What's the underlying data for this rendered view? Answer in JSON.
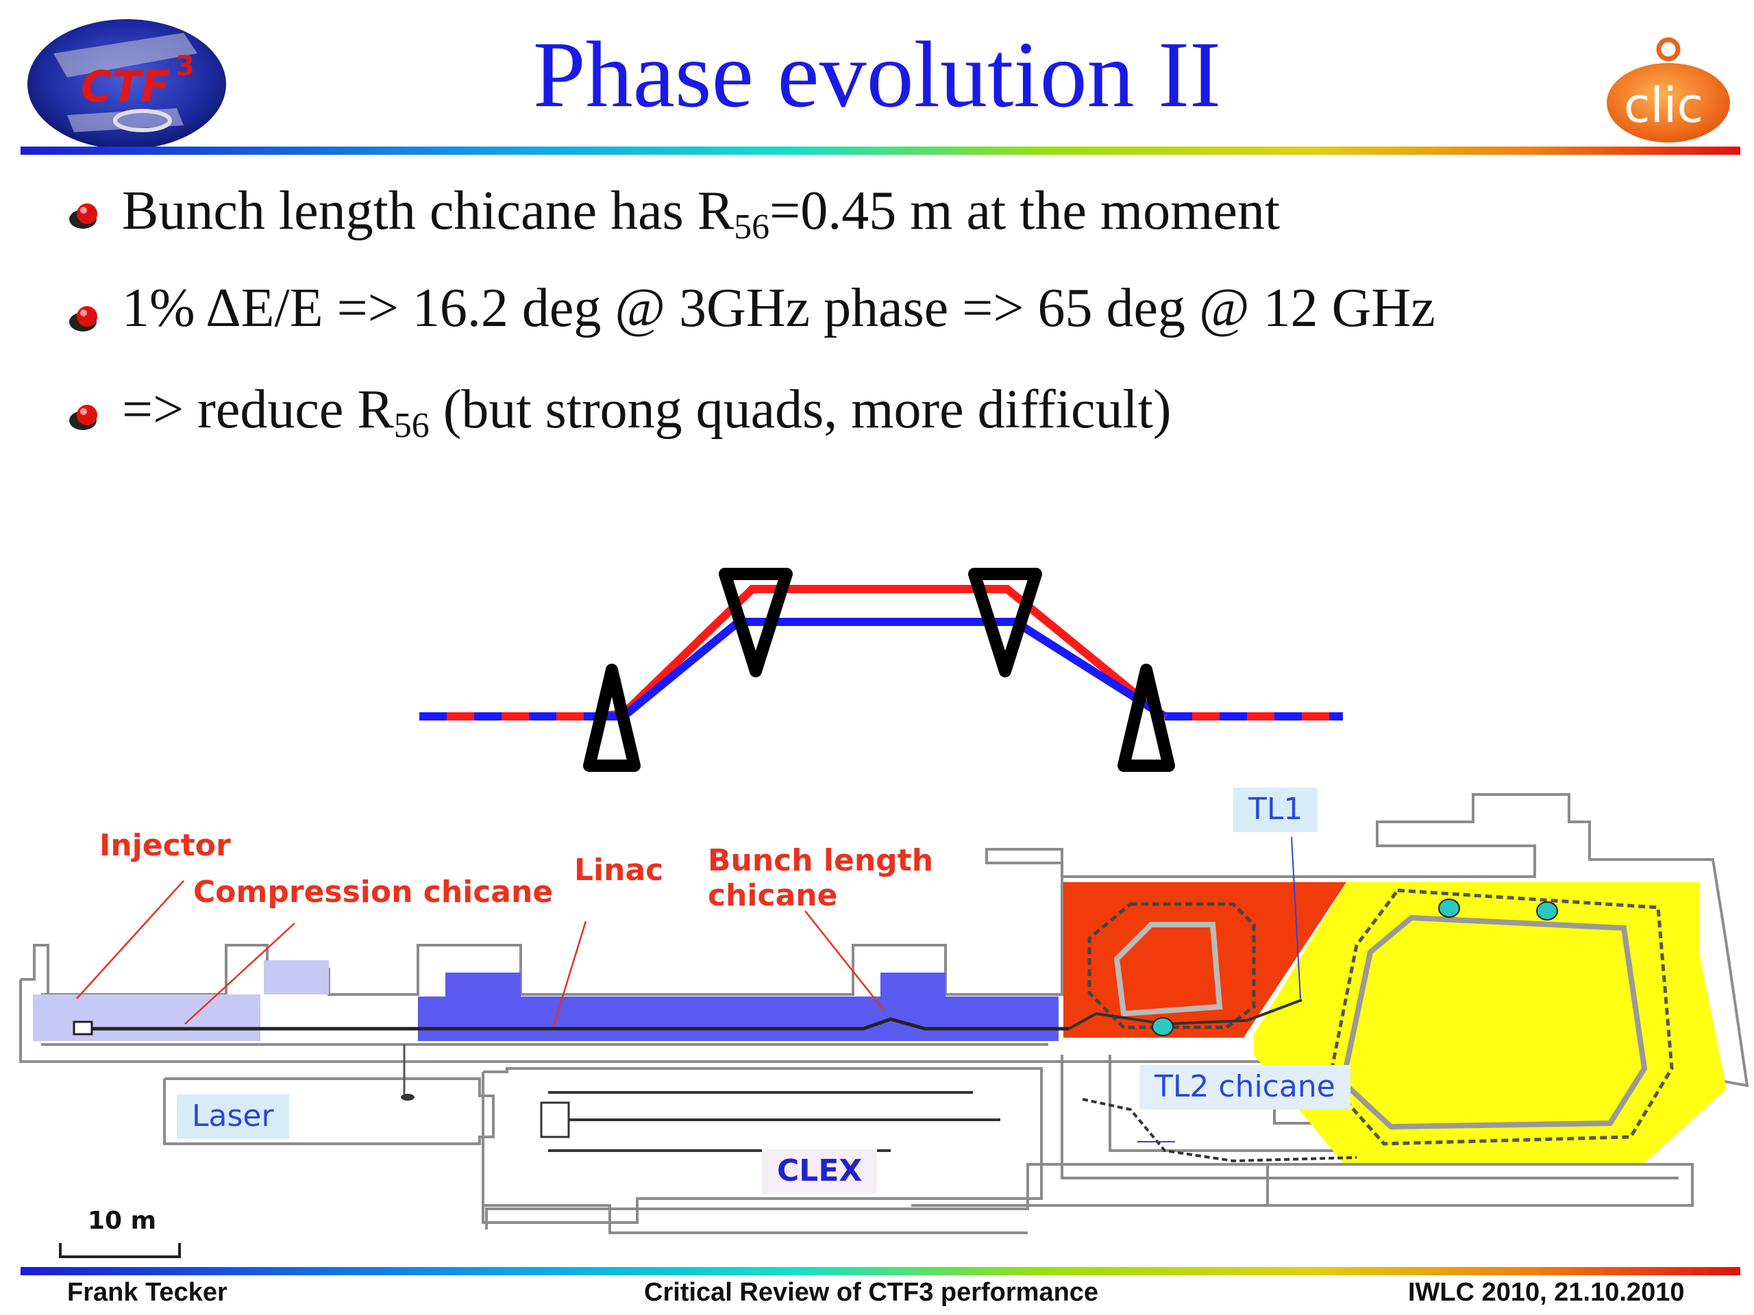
{
  "slide": {
    "title": "Phase evolution II"
  },
  "bullets": [
    {
      "pre": "Bunch length chicane has R",
      "sub": "56",
      "post": "=0.45 m at the moment"
    },
    {
      "pre": "1% ΔE/E => 16.2 deg @ 3GHz phase => 65 deg @ 12 GHz",
      "sub": "",
      "post": ""
    },
    {
      "pre": "=> reduce R",
      "sub": "56",
      "post": " (but strong quads, more difficult)"
    }
  ],
  "logos": {
    "left_text": "CTF",
    "left_superscript": "3",
    "right_text": "clic"
  },
  "diagram": {
    "labels": {
      "injector": "Injector",
      "compression": "Compression chicane",
      "linac": "Linac",
      "bunch_length_1": "Bunch length",
      "bunch_length_2": "chicane",
      "tl1": "TL1",
      "tl2": "TL2 chicane",
      "laser": "Laser",
      "clex": "CLEX",
      "scale": "10 m"
    },
    "colors": {
      "red_beam": "#ff1a1a",
      "blue_beam": "#1a1aff",
      "red_area": "#f03c0a",
      "yellow_area": "#ffff14",
      "blue_area": "#5a5af0",
      "light_blue_area": "#c8c8f5"
    }
  },
  "footer": {
    "author": "Frank Tecker",
    "center": "Critical Review of CTF3 performance",
    "right": "IWLC 2010, 21.10.2010"
  }
}
